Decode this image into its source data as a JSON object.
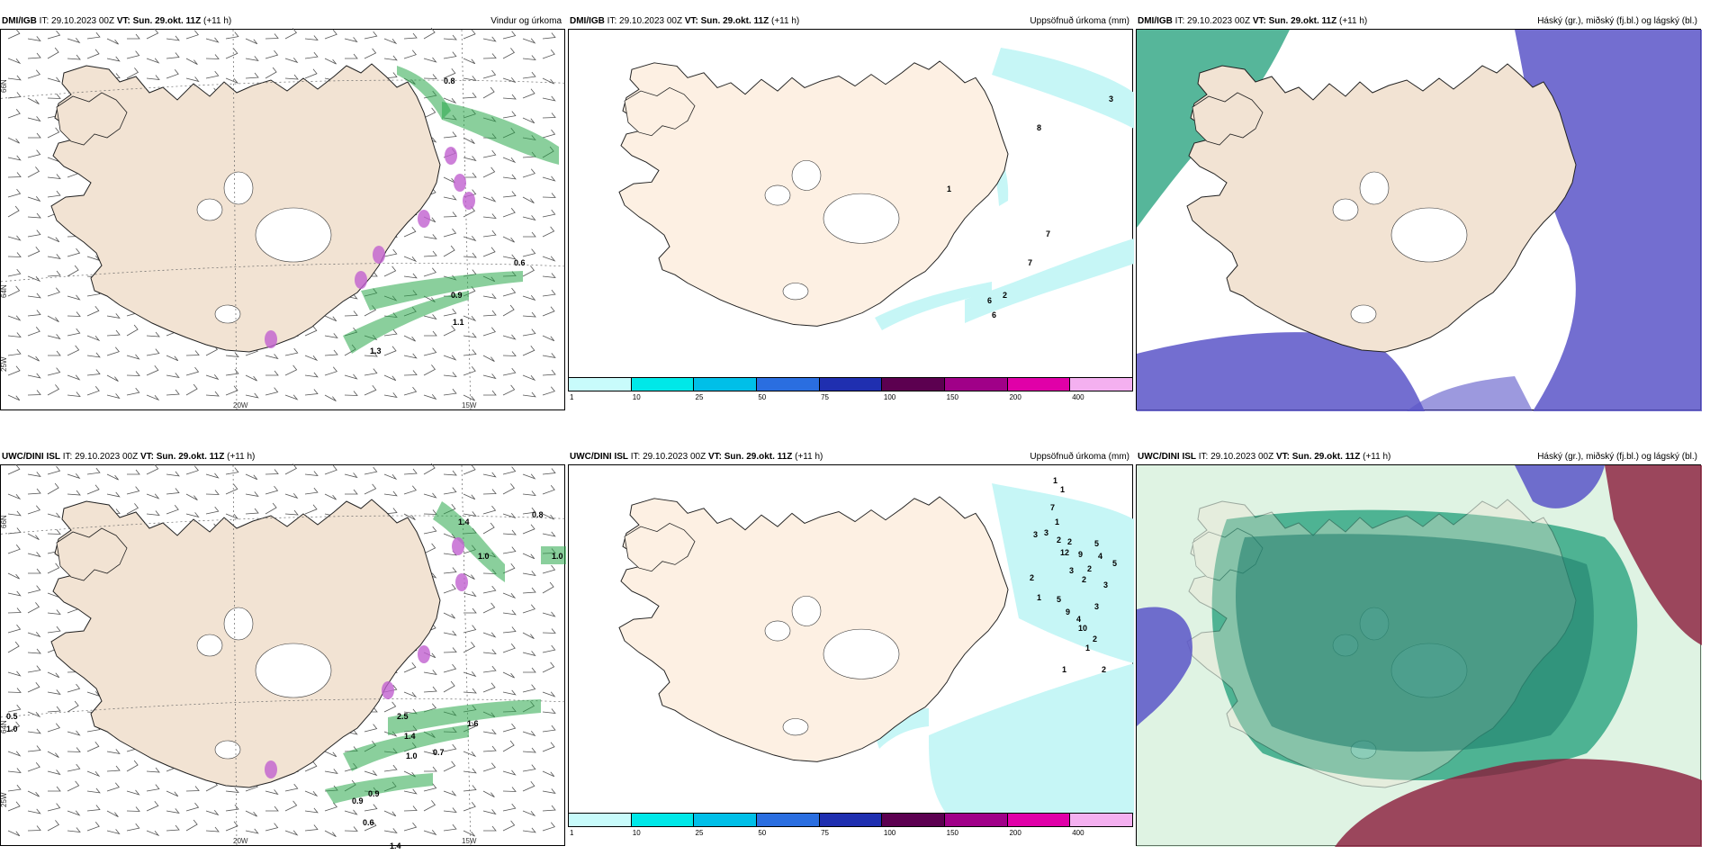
{
  "panels": [
    {
      "model": "DMI/IGB",
      "it_label": "IT:",
      "it_value": "29.10.2023 00Z",
      "vt_label": "VT:",
      "vt_value": "Sun. 29.okt. 11Z",
      "lead": "(+11 h)",
      "title": "Vindur og úrkoma",
      "type": "wind",
      "axis_labels": [
        "66N",
        "64N",
        "20W",
        "15W",
        "25W"
      ],
      "values": [
        "0.8",
        "0.6",
        "0.9",
        "1.1",
        "1.3"
      ]
    },
    {
      "model": "DMI/IGB",
      "it_label": "IT:",
      "it_value": "29.10.2023 00Z",
      "vt_label": "VT:",
      "vt_value": "Sun. 29.okt. 11Z",
      "lead": "(+11 h)",
      "title": "Uppsöfnuð úrkoma (mm)",
      "type": "precip",
      "values": [
        "3",
        "8",
        "1",
        "7",
        "7",
        "2",
        "6",
        "6"
      ]
    },
    {
      "model": "DMI/IGB",
      "it_label": "IT:",
      "it_value": "29.10.2023 00Z",
      "vt_label": "VT:",
      "vt_value": "Sun. 29.okt. 11Z",
      "lead": "(+11 h)",
      "title": "Háský (gr.), miðský (fj.bl.) og lágský (bl.)",
      "type": "cloud1"
    },
    {
      "model": "UWC/DINI ISL",
      "it_label": "IT:",
      "it_value": "29.10.2023 00Z",
      "vt_label": "VT:",
      "vt_value": "Sun. 29.okt. 11Z",
      "lead": "(+11 h)",
      "title": "",
      "type": "wind",
      "axis_labels": [
        "66N",
        "64N",
        "20W",
        "15W",
        "25W"
      ],
      "values": [
        "0.8",
        "1.4",
        "1.0",
        "1.0",
        "0.5",
        "1.0",
        "2.5",
        "1.4",
        "1.0",
        "0.7",
        "1.6",
        "0.9",
        "0.9",
        "0.6",
        "1.4"
      ]
    },
    {
      "model": "UWC/DINI ISL",
      "it_label": "IT:",
      "it_value": "29.10.2023 00Z",
      "vt_label": "VT:",
      "vt_value": "Sun. 29.okt. 11Z",
      "lead": "(+11 h)",
      "title": "Uppsöfnuð úrkoma (mm)",
      "type": "precip",
      "values": [
        "1",
        "1",
        "7",
        "1",
        "2",
        "3",
        "3",
        "2",
        "12",
        "9",
        "5",
        "3",
        "2",
        "1",
        "5",
        "9",
        "4",
        "10",
        "2",
        "2",
        "2",
        "4",
        "5",
        "3",
        "3",
        "1",
        "2",
        "1"
      ]
    },
    {
      "model": "UWC/DINI ISL",
      "it_label": "IT:",
      "it_value": "29.10.2023 00Z",
      "vt_label": "VT:",
      "vt_value": "Sun. 29.okt. 11Z",
      "lead": "(+11 h)",
      "title": "Háský (gr.), miðský (fj.bl.) og lágský (bl.)",
      "type": "cloud2"
    }
  ],
  "legend": {
    "ticks": [
      "1",
      "10",
      "25",
      "50",
      "75",
      "100",
      "150",
      "200",
      "400"
    ],
    "colors": [
      "#c8fbfb",
      "#00e8e8",
      "#00bfe8",
      "#2a6ee0",
      "#1f2fb0",
      "#5c0050",
      "#a00088",
      "#e000a8",
      "#f4b0f0"
    ]
  },
  "colors": {
    "land": "#f2e3d3",
    "land_precip": "#fdf0e3",
    "glacier": "#ffffff",
    "wind_precip_green": "#2aa84a",
    "precip_cyan": "#c6f6f6",
    "high_cloud": "#1e9e78",
    "mid_cloud": "#5a55c8",
    "low_cloud": "#8a1a3a"
  }
}
